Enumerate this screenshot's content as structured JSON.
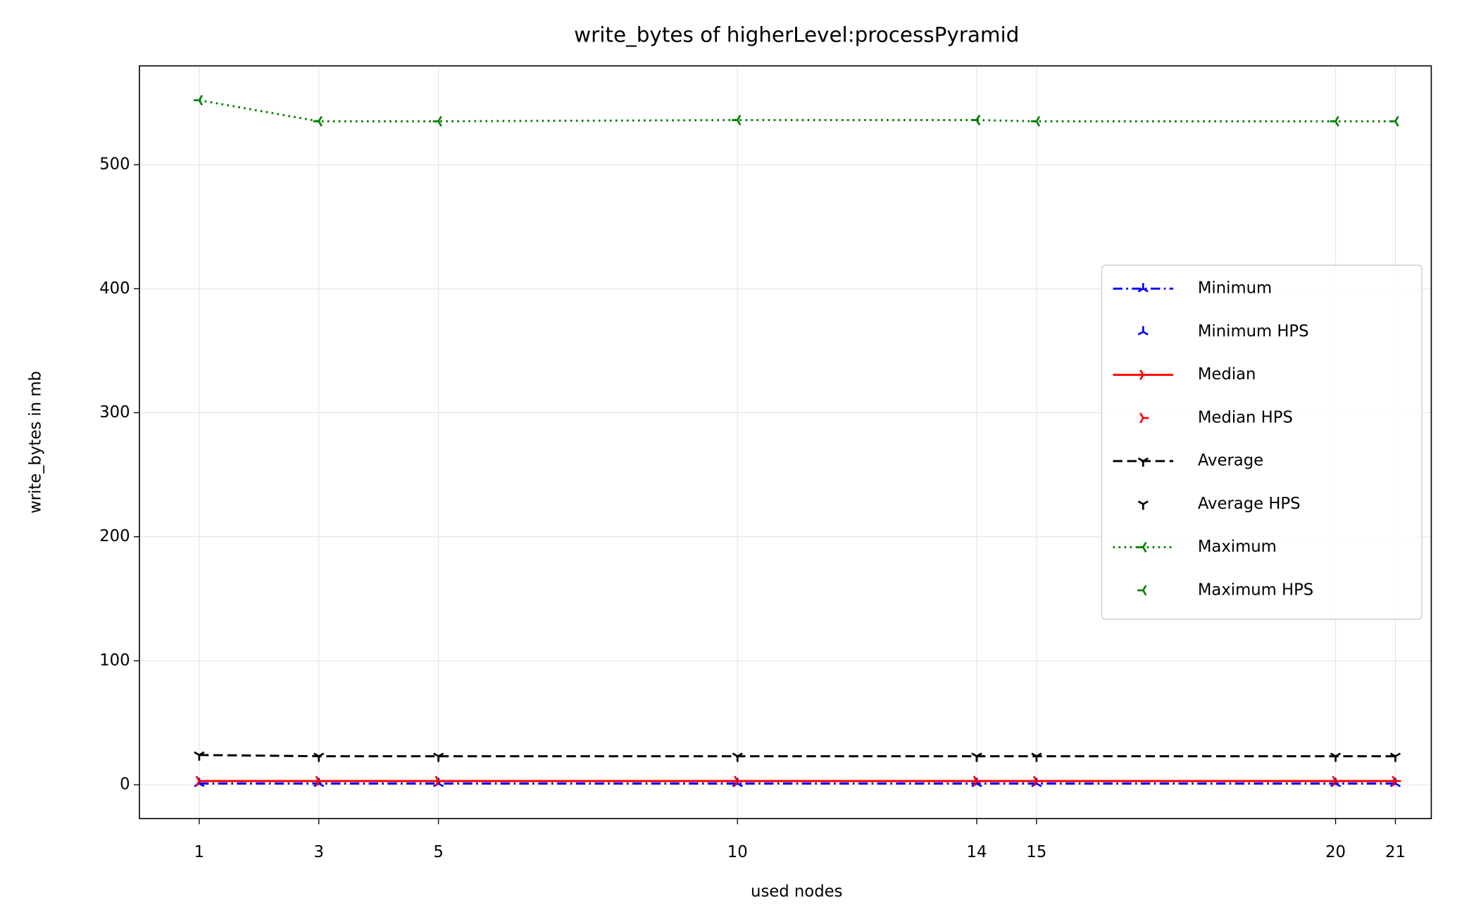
{
  "chart_data": {
    "type": "line",
    "title": "write_bytes of higherLevel:processPyramid",
    "xlabel": "used nodes",
    "ylabel": "write_bytes in mb",
    "x": [
      1,
      3,
      5,
      10,
      14,
      15,
      20,
      21
    ],
    "series": [
      {
        "name": "Minimum",
        "color": "#0000ff",
        "line": "dashdot",
        "marker": "tri_up",
        "values": [
          1,
          1,
          1,
          1,
          1,
          1,
          1,
          1
        ]
      },
      {
        "name": "Minimum HPS",
        "color": "#0000ff",
        "line": "none",
        "marker": "tri_up",
        "values": [
          null,
          null,
          null,
          null,
          1,
          null,
          null,
          null
        ]
      },
      {
        "name": "Median",
        "color": "#ff0000",
        "line": "solid",
        "marker": "tri_right",
        "values": [
          3,
          3,
          3,
          3,
          3,
          3,
          3,
          3
        ]
      },
      {
        "name": "Median HPS",
        "color": "#ff0000",
        "line": "none",
        "marker": "tri_right",
        "values": [
          null,
          null,
          null,
          null,
          3,
          null,
          null,
          null
        ]
      },
      {
        "name": "Average",
        "color": "#000000",
        "line": "dashed",
        "marker": "tri_down",
        "values": [
          24,
          23,
          23,
          23,
          23,
          23,
          23,
          23
        ]
      },
      {
        "name": "Average HPS",
        "color": "#000000",
        "line": "none",
        "marker": "tri_down",
        "values": [
          null,
          null,
          null,
          null,
          23,
          null,
          null,
          null
        ]
      },
      {
        "name": "Maximum",
        "color": "#008000",
        "line": "dotted",
        "marker": "tri_left",
        "values": [
          552,
          535,
          535,
          536,
          536,
          535,
          535,
          535
        ]
      },
      {
        "name": "Maximum HPS",
        "color": "#008000",
        "line": "none",
        "marker": "tri_left",
        "values": [
          null,
          null,
          null,
          null,
          536,
          null,
          null,
          null
        ]
      }
    ],
    "xlim": [
      0,
      21.6
    ],
    "ylim": [
      -27.3,
      579.7
    ],
    "xticks": [
      1,
      3,
      5,
      10,
      14,
      15,
      20,
      21
    ],
    "yticks": [
      0,
      100,
      200,
      300,
      400,
      500
    ],
    "grid": true,
    "legend": "center right"
  }
}
